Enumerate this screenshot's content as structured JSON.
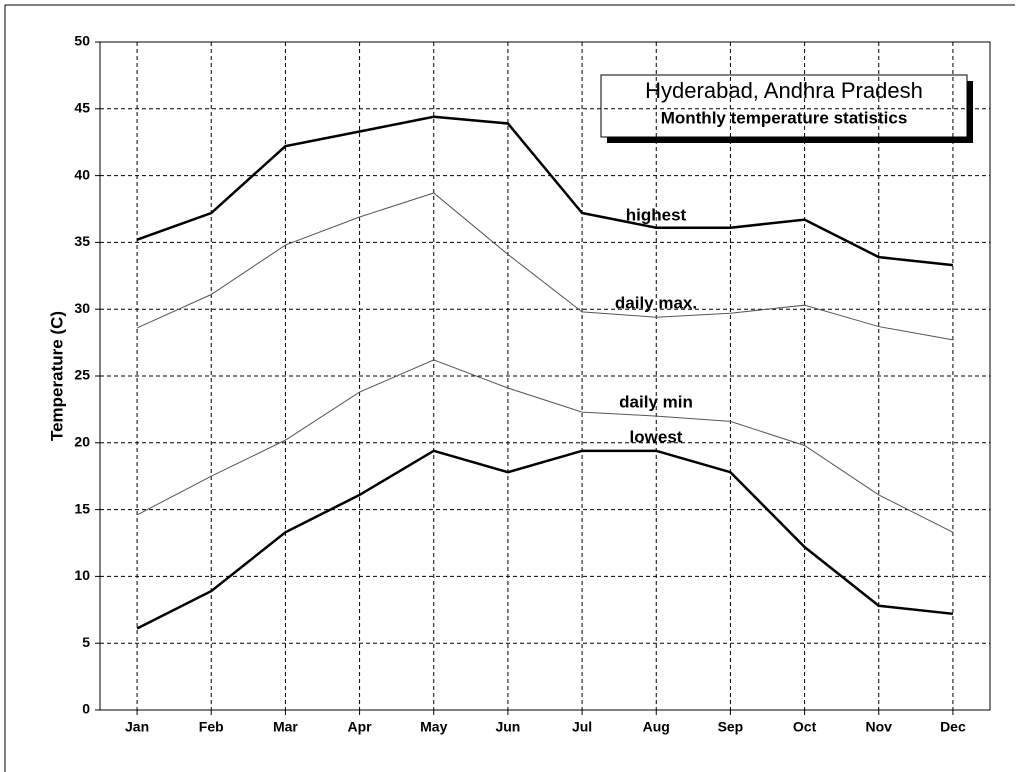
{
  "chart_data": {
    "type": "line",
    "title": "Hyderabad, Andhra Pradesh",
    "subtitle": "Monthly temperature statistics",
    "y_label": "Temperature (C)",
    "categories": [
      "Jan",
      "Feb",
      "Mar",
      "Apr",
      "May",
      "Jun",
      "Jul",
      "Aug",
      "Sep",
      "Oct",
      "Nov",
      "Dec"
    ],
    "series": [
      {
        "name": "highest",
        "color": "#000000",
        "values": [
          35.2,
          37.2,
          42.2,
          43.3,
          44.4,
          43.9,
          37.2,
          36.1,
          36.1,
          36.7,
          33.9,
          33.3
        ]
      },
      {
        "name": "daily max.",
        "color": "#555555",
        "values": [
          28.6,
          31.1,
          34.8,
          36.9,
          38.7,
          34.1,
          29.8,
          29.4,
          29.7,
          30.3,
          28.7,
          27.7
        ]
      },
      {
        "name": "daily min",
        "color": "#555555",
        "values": [
          14.6,
          17.5,
          20.2,
          23.8,
          26.2,
          24.1,
          22.3,
          22.0,
          21.6,
          19.8,
          16.1,
          13.3
        ]
      },
      {
        "name": "lowest",
        "color": "#000000",
        "values": [
          6.1,
          8.9,
          13.3,
          16.1,
          19.4,
          17.8,
          19.4,
          19.4,
          17.8,
          12.2,
          7.8,
          7.2
        ]
      }
    ],
    "ylim": [
      0,
      50
    ],
    "yticks": [
      0,
      5,
      10,
      15,
      20,
      25,
      30,
      35,
      40,
      45,
      50
    ],
    "grid": true
  }
}
